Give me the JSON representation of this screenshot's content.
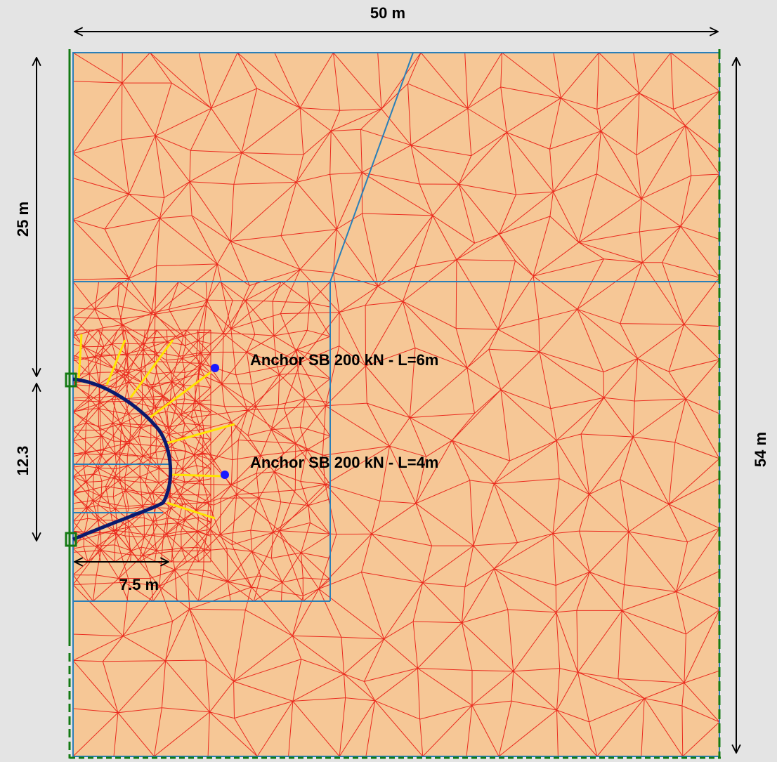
{
  "dimensions": {
    "width": "50 m",
    "upper_depth": "25 m",
    "tunnel_height": "12.3",
    "total_depth": "54 m",
    "tunnel_width": "7.5 m"
  },
  "anchors": [
    {
      "label": "Anchor SB 200 kN - L=6m"
    },
    {
      "label": "Anchor SB 200 kN - L=4m"
    }
  ]
}
